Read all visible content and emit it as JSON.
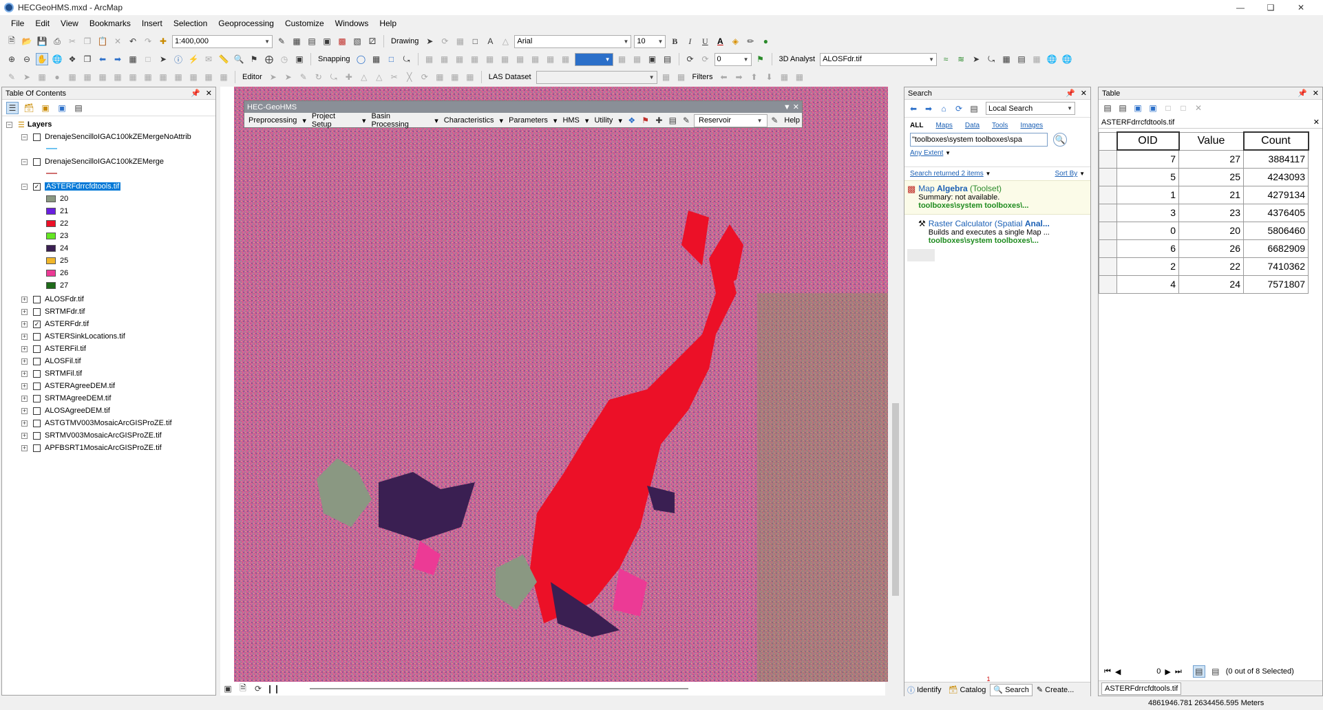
{
  "window": {
    "title": "HECGeoHMS.mxd - ArcMap"
  },
  "menu": [
    "File",
    "Edit",
    "View",
    "Bookmarks",
    "Insert",
    "Selection",
    "Geoprocessing",
    "Customize",
    "Windows",
    "Help"
  ],
  "toolbar": {
    "scale": "1:400,000",
    "drawing_label": "Drawing",
    "font_name": "Arial",
    "font_size": "10",
    "snapping_label": "Snapping",
    "threed_label": "3D Analyst",
    "threed_layer": "ALOSFdr.tif",
    "editor_label": "Editor",
    "las_label": "LAS Dataset",
    "filters_label": "Filters",
    "bold": "B",
    "italic": "I",
    "underline": "U",
    "zero_field": "0"
  },
  "toc": {
    "title": "Table Of Contents",
    "root": "Layers",
    "layers": [
      {
        "name": "DrenajeSencilloIGAC100kZEMergeNoAttrib",
        "checked": false,
        "expanded": true
      },
      {
        "name": "DrenajeSencilloIGAC100kZEMerge",
        "checked": false,
        "expanded": true
      },
      {
        "name": "ASTERFdrrcfdtools.tif",
        "checked": true,
        "expanded": true,
        "selected": true
      }
    ],
    "legend": [
      {
        "label": "20",
        "color": "#8a9882"
      },
      {
        "label": "21",
        "color": "#6a1fe0"
      },
      {
        "label": "22",
        "color": "#ec1027"
      },
      {
        "label": "23",
        "color": "#64e622"
      },
      {
        "label": "24",
        "color": "#3a1f52"
      },
      {
        "label": "25",
        "color": "#f0b62a"
      },
      {
        "label": "26",
        "color": "#ec3a95"
      },
      {
        "label": "27",
        "color": "#1e6b1a"
      }
    ],
    "other_layers": [
      {
        "name": "ALOSFdr.tif",
        "checked": false
      },
      {
        "name": "SRTMFdr.tif",
        "checked": false
      },
      {
        "name": "ASTERFdr.tif",
        "checked": true
      },
      {
        "name": "ASTERSinkLocations.tif",
        "checked": false
      },
      {
        "name": "ASTERFil.tif",
        "checked": false
      },
      {
        "name": "ALOSFil.tif",
        "checked": false
      },
      {
        "name": "SRTMFil.tif",
        "checked": false
      },
      {
        "name": "ASTERAgreeDEM.tif",
        "checked": false
      },
      {
        "name": "SRTMAgreeDEM.tif",
        "checked": false
      },
      {
        "name": "ALOSAgreeDEM.tif",
        "checked": false
      },
      {
        "name": "ASTGTMV003MosaicArcGISProZE.tif",
        "checked": false
      },
      {
        "name": "SRTMV003MosaicArcGISProZE.tif",
        "checked": false
      },
      {
        "name": "APFBSRT1MosaicArcGISProZE.tif",
        "checked": false
      }
    ]
  },
  "hec": {
    "title": "HEC-GeoHMS",
    "menus": [
      "Preprocessing",
      "Project Setup",
      "Basin Processing",
      "Characteristics",
      "Parameters",
      "HMS",
      "Utility"
    ],
    "reservoir": "Reservoir",
    "help": "Help"
  },
  "search": {
    "title": "Search",
    "scope": "Local Search",
    "tabs": [
      "ALL",
      "Maps",
      "Data",
      "Tools",
      "Images"
    ],
    "query": "\"toolboxes\\system toolboxes\\spa",
    "extent": "Any Extent",
    "returned": "Search returned 2 items",
    "sortby": "Sort By",
    "results": [
      {
        "title_a": "Map ",
        "title_b": "Algebra",
        "title_c": " (Toolset)",
        "summary": "Summary: not available.",
        "path": "toolboxes\\system toolboxes\\..."
      },
      {
        "title_a": "Raster Calculator (Spatial ",
        "title_b": "Anal...",
        "title_c": "",
        "summary": "Builds and executes a single Map ...",
        "path": "toolboxes\\system toolboxes\\..."
      }
    ],
    "bottom_tabs": [
      "Identify",
      "Catalog",
      "Search",
      "Create..."
    ],
    "catalog_badge": "1"
  },
  "table": {
    "title": "Table",
    "tab_title": "ASTERFdrrcfdtools.tif",
    "columns": [
      "OID",
      "Value",
      "Count"
    ],
    "rows": [
      [
        7,
        27,
        3884117
      ],
      [
        5,
        25,
        4243093
      ],
      [
        1,
        21,
        4279134
      ],
      [
        3,
        23,
        4376405
      ],
      [
        0,
        20,
        5806460
      ],
      [
        6,
        26,
        6682909
      ],
      [
        2,
        22,
        7410362
      ],
      [
        4,
        24,
        7571807
      ]
    ],
    "record": "0",
    "selected_text": "(0 out of 8 Selected)",
    "bottom_tab": "ASTERFdrrcfdtools.tif"
  },
  "status": {
    "coords": "4861946.781  2634456.595 Meters"
  }
}
